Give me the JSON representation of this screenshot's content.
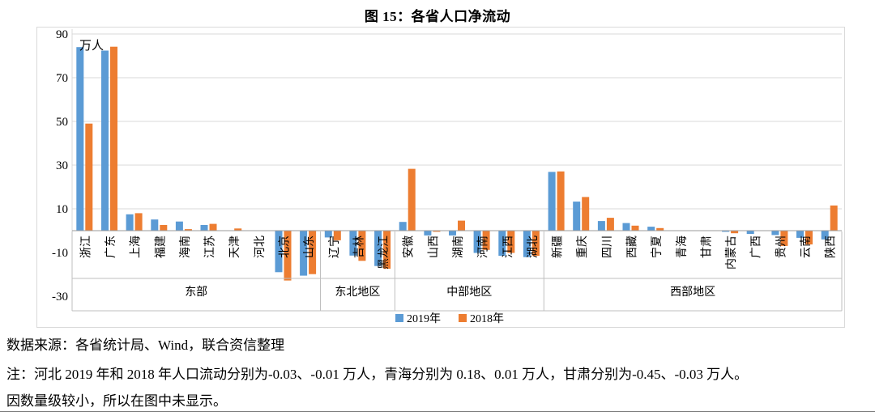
{
  "title": "图 15：各省人口净流动",
  "chart_data": {
    "type": "bar",
    "title": "图 15：各省人口净流动",
    "unit_label": "万人",
    "grid": true,
    "legend_position": "bottom",
    "y_axis": {
      "min": -30,
      "max": 90,
      "tick_step": 20,
      "ticks": [
        90,
        70,
        50,
        30,
        10,
        -10,
        -30
      ]
    },
    "categories": [
      "浙江",
      "广东",
      "上海",
      "福建",
      "海南",
      "江苏",
      "天津",
      "河北",
      "北京",
      "山东",
      "辽宁",
      "吉林",
      "黑龙江",
      "安徽",
      "山西",
      "湖南",
      "河南",
      "江西",
      "湖北",
      "新疆",
      "重庆",
      "四川",
      "西藏",
      "宁夏",
      "青海",
      "甘肃",
      "内蒙古",
      "广西",
      "贵州",
      "云南",
      "陕西"
    ],
    "regions": [
      {
        "label": "东部",
        "count": 10
      },
      {
        "label": "东北地区",
        "count": 3
      },
      {
        "label": "中部地区",
        "count": 6
      },
      {
        "label": "西部地区",
        "count": 12
      }
    ],
    "series": [
      {
        "name": "2019年",
        "color": "#5B9BD5",
        "values": [
          84,
          82.4,
          7.5,
          5.1,
          4.2,
          2.6,
          0.3,
          -0.03,
          -19,
          -20.6,
          -3.1,
          -11.4,
          -16.2,
          4.0,
          -2.2,
          -2.2,
          -10.2,
          -11.5,
          -12.1,
          26.9,
          13.3,
          4.4,
          3.5,
          1.8,
          0.18,
          -0.45,
          -0.5,
          -1.5,
          -2.0,
          -3.3,
          -4.0
        ]
      },
      {
        "name": "2018年",
        "color": "#ED7D31",
        "values": [
          49,
          84.2,
          8.0,
          2.6,
          0.7,
          3.1,
          1.0,
          -0.01,
          -22.8,
          -19.9,
          -4.4,
          -13.8,
          -17.4,
          28.3,
          -0.5,
          4.6,
          -8.8,
          -10.2,
          -11.5,
          27.1,
          15.4,
          5.9,
          2.3,
          1.2,
          0.01,
          -0.03,
          -1.2,
          -0.2,
          -7.0,
          -6.3,
          11.5
        ]
      }
    ],
    "hidden_note": "河北、青海、甘肃数值过小图中未显示"
  },
  "footer": {
    "source": "数据来源：各省统计局、Wind，联合资信整理",
    "note_line1": "注：河北 2019 年和 2018 年人口流动分别为-0.03、-0.01 万人，青海分别为 0.18、0.01 万人，甘肃分别为-0.45、-0.03 万人。",
    "note_line2": "因数量级较小，所以在图中未显示。"
  },
  "colors": {
    "series_2019": "#5B9BD5",
    "series_2018": "#ED7D31",
    "gridline": "#D9D9D9",
    "axis_line": "#9a9a9a",
    "band_line": "#bfbfbf",
    "text": "#000000"
  }
}
